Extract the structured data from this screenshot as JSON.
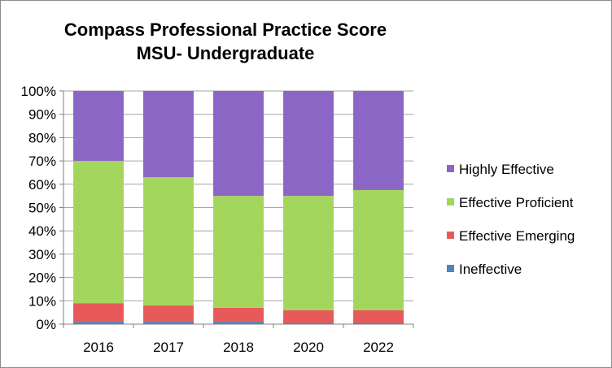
{
  "chart_data": {
    "type": "bar",
    "stacked": "percent",
    "title": "Compass Professional Practice Score",
    "subtitle": "MSU- Undergraduate",
    "xlabel": "",
    "ylabel": "",
    "ylim": [
      0,
      100
    ],
    "y_ticks": [
      "0%",
      "10%",
      "20%",
      "30%",
      "40%",
      "50%",
      "60%",
      "70%",
      "80%",
      "90%",
      "100%"
    ],
    "grid": true,
    "legend_position": "right",
    "categories": [
      "2016",
      "2017",
      "2018",
      "2020",
      "2022"
    ],
    "series": [
      {
        "name": "Ineffective",
        "color": "#4f81bd",
        "values": [
          1,
          1,
          1,
          0.5,
          0.5
        ]
      },
      {
        "name": "Effective Emerging",
        "color": "#e85a5a",
        "values": [
          8,
          7,
          6,
          5.5,
          5.5
        ]
      },
      {
        "name": "Effective Proficient",
        "color": "#a4d65e",
        "values": [
          61,
          55,
          48,
          49,
          51.5
        ]
      },
      {
        "name": "Highly Effective",
        "color": "#8b66c4",
        "values": [
          30,
          37,
          45,
          45,
          42.5
        ]
      }
    ]
  }
}
